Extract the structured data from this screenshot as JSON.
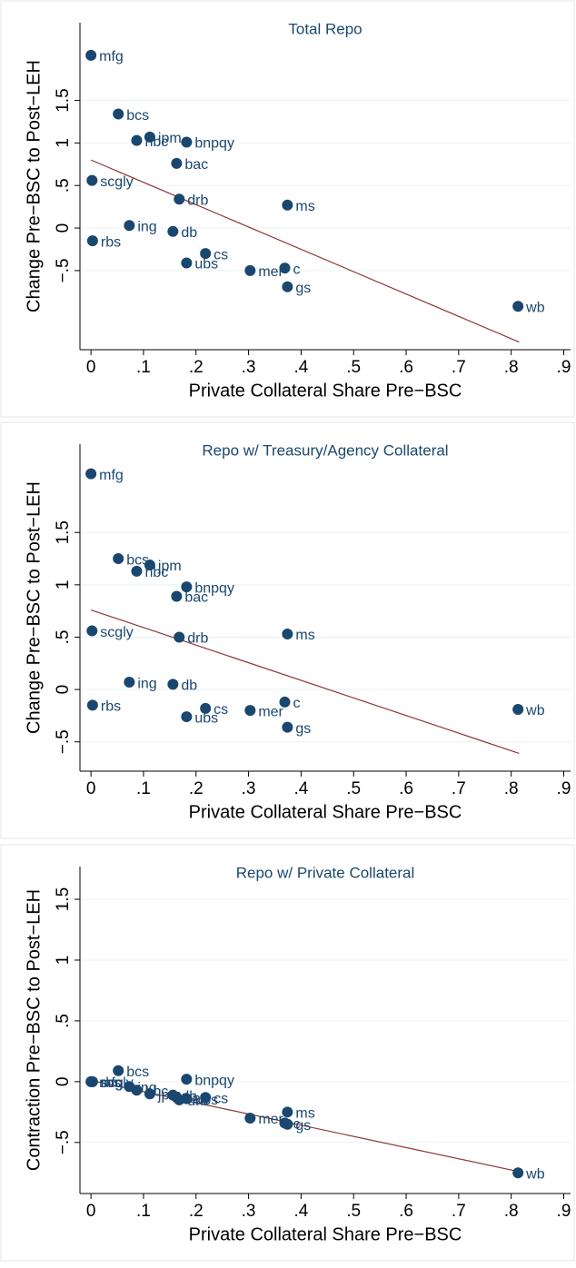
{
  "chart_data": [
    {
      "type": "scatter",
      "title": "Total Repo",
      "x_label": "Private Collateral Share Pre−BSC",
      "y_label": "Change Pre−BSC to Post−LEH",
      "labels": [
        "mfg",
        "bcs",
        "jpm",
        "hbc",
        "bnpqy",
        "bac",
        "scgly",
        "drb",
        "ms",
        "ing",
        "db",
        "rbs",
        "cs",
        "ubs",
        "mer",
        "c",
        "gs",
        "wb"
      ],
      "x": [
        0,
        0.052,
        0.112,
        0.087,
        0.182,
        0.163,
        0.002,
        0.168,
        0.374,
        0.073,
        0.156,
        0.003,
        0.218,
        0.182,
        0.303,
        0.369,
        0.374,
        0.813
      ],
      "y": [
        2.03,
        1.34,
        1.07,
        1.03,
        1.01,
        0.76,
        0.56,
        0.34,
        0.27,
        0.03,
        -0.04,
        -0.15,
        -0.3,
        -0.41,
        -0.5,
        -0.47,
        -0.69,
        -0.92
      ],
      "fit": {
        "x": [
          0,
          0.815
        ],
        "y": [
          0.8,
          -1.34
        ]
      },
      "color": "#1a476f",
      "line_color": "#90353b",
      "grid": true,
      "xlim": [
        -0.021,
        0.913
      ],
      "ylim": [
        -1.43,
        2.2
      ],
      "xticks": [
        0,
        {
          "value": 0.1,
          "label": ".1"
        },
        {
          "value": 0.2,
          "label": ".2"
        },
        {
          "value": 0.3,
          "label": ".3"
        },
        {
          "value": 0.4,
          "label": ".4"
        },
        {
          "value": 0.5,
          "label": ".5"
        },
        {
          "value": 0.6,
          "label": ".6"
        },
        {
          "value": 0.7,
          "label": ".7"
        },
        {
          "value": 0.8,
          "label": ".8"
        },
        {
          "value": 0.9,
          "label": ".9"
        }
      ],
      "yticks": [
        {
          "value": -0.5,
          "label": "−.5"
        },
        0,
        {
          "value": 0.5,
          "label": ".5"
        },
        1,
        1.5
      ]
    },
    {
      "type": "scatter",
      "title": "Repo w/ Treasury/Agency Collateral",
      "x_label": "Private Collateral Share Pre−BSC",
      "y_label": "Change Pre−BSC to Post−LEH",
      "labels": [
        "mfg",
        "bcs",
        "jpm",
        "hbc",
        "bnpqy",
        "bac",
        "scgly",
        "drb",
        "ms",
        "ing",
        "db",
        "rbs",
        "cs",
        "ubs",
        "mer",
        "c",
        "gs",
        "wb"
      ],
      "x": [
        0,
        0.052,
        0.112,
        0.087,
        0.182,
        0.163,
        0.002,
        0.168,
        0.374,
        0.073,
        0.156,
        0.003,
        0.218,
        0.182,
        0.303,
        0.369,
        0.374,
        0.813
      ],
      "y": [
        2.06,
        1.25,
        1.19,
        1.13,
        0.98,
        0.89,
        0.56,
        0.5,
        0.53,
        0.07,
        0.05,
        -0.15,
        -0.18,
        -0.26,
        -0.2,
        -0.12,
        -0.36,
        -0.19
      ],
      "fit": {
        "x": [
          0,
          0.815
        ],
        "y": [
          0.76,
          -0.61
        ]
      },
      "color": "#1a476f",
      "line_color": "#90353b",
      "grid": true,
      "xlim": [
        -0.021,
        0.913
      ],
      "ylim": [
        -0.78,
        2.17
      ],
      "xticks": [
        0,
        {
          "value": 0.1,
          "label": ".1"
        },
        {
          "value": 0.2,
          "label": ".2"
        },
        {
          "value": 0.3,
          "label": ".3"
        },
        {
          "value": 0.4,
          "label": ".4"
        },
        {
          "value": 0.5,
          "label": ".5"
        },
        {
          "value": 0.6,
          "label": ".6"
        },
        {
          "value": 0.7,
          "label": ".7"
        },
        {
          "value": 0.8,
          "label": ".8"
        },
        {
          "value": 0.9,
          "label": ".9"
        }
      ],
      "yticks": [
        {
          "value": -0.5,
          "label": "−.5"
        },
        0,
        {
          "value": 0.5,
          "label": ".5"
        },
        1,
        1.5
      ]
    },
    {
      "type": "scatter",
      "title": "Repo w/ Private Collateral",
      "x_label": "Private Collateral Share Pre−BSC",
      "y_label": "Contraction Pre−BSC to Post−LEH",
      "labels": [
        "mfg",
        "scgly",
        "rbs",
        "bcs",
        "ing",
        "hbc",
        "jpm",
        "db",
        "drb",
        "ubs",
        "bnpqy",
        "bac",
        "cs",
        "mer",
        "c",
        "gs",
        "ms",
        "wb"
      ],
      "x": [
        0,
        0.002,
        0.003,
        0.052,
        0.073,
        0.087,
        0.112,
        0.156,
        0.168,
        0.182,
        0.182,
        0.163,
        0.218,
        0.303,
        0.369,
        0.374,
        0.374,
        0.813
      ],
      "y": [
        0,
        0,
        0,
        0.09,
        -0.04,
        -0.07,
        -0.1,
        -0.11,
        -0.15,
        -0.14,
        0.02,
        -0.13,
        -0.13,
        -0.3,
        -0.34,
        -0.35,
        -0.25,
        -0.75
      ],
      "fit": {
        "x": [
          0,
          0.815
        ],
        "y": [
          0.01,
          -0.74
        ]
      },
      "color": "#1a476f",
      "line_color": "#90353b",
      "grid": true,
      "xlim": [
        -0.021,
        0.913
      ],
      "ylim": [
        -0.92,
        1.62
      ],
      "xticks": [
        0,
        {
          "value": 0.1,
          "label": ".1"
        },
        {
          "value": 0.2,
          "label": ".2"
        },
        {
          "value": 0.3,
          "label": ".3"
        },
        {
          "value": 0.4,
          "label": ".4"
        },
        {
          "value": 0.5,
          "label": ".5"
        },
        {
          "value": 0.6,
          "label": ".6"
        },
        {
          "value": 0.7,
          "label": ".7"
        },
        {
          "value": 0.8,
          "label": ".8"
        },
        {
          "value": 0.9,
          "label": ".9"
        }
      ],
      "yticks": [
        {
          "value": -0.5,
          "label": "−.5"
        },
        0,
        {
          "value": 0.5,
          "label": ".5"
        },
        1,
        1.5
      ]
    }
  ]
}
